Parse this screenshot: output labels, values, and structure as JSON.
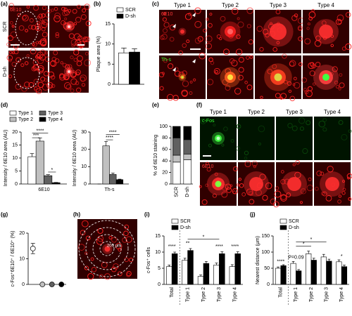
{
  "panel_labels": [
    "(a)",
    "(b)",
    "(c)",
    "(d)",
    "(e)",
    "(f)",
    "(g)",
    "(h)",
    "(i)",
    "(j)"
  ],
  "image_panels": {
    "a": {
      "stain": "6E10",
      "rows": [
        "SCR",
        "D-sh"
      ]
    },
    "c": {
      "columns": [
        "Type 1",
        "Type 2",
        "Type 3",
        "Type 4"
      ],
      "rows": [
        "6E10",
        "Th-s"
      ]
    },
    "f": {
      "columns": [
        "Type 1",
        "Type 2",
        "Type 3",
        "Type 4"
      ],
      "rows": [
        "c-Fos",
        "6E10"
      ]
    },
    "h": {
      "scale_label": "200 μm"
    }
  },
  "chart_data": [
    {
      "type": "bar",
      "ylabel": "Plaque area (%)",
      "categories": [
        null
      ],
      "series": [
        {
          "name": "SCR",
          "color": "#ffffff",
          "values": [
            7.8
          ],
          "errors": [
            1.2
          ]
        },
        {
          "name": "D-sh",
          "color": "#000000",
          "values": [
            8.0
          ],
          "errors": [
            0.8
          ]
        }
      ],
      "ylim": [
        0,
        15
      ],
      "yticks": [
        0,
        5,
        10,
        15
      ],
      "legend": "top"
    },
    {
      "type": "bar",
      "ylabel": "Intensity / 6E10 area (AU)",
      "categories": [
        "6E10"
      ],
      "series": [
        {
          "name": "Type 1",
          "color": "#ffffff",
          "values": [
            10.5
          ],
          "errors": [
            1.2
          ]
        },
        {
          "name": "Type 2",
          "color": "#c0c0c0",
          "values": [
            16.5
          ],
          "errors": [
            1.2
          ]
        },
        {
          "name": "Type 3",
          "color": "#606060",
          "values": [
            3.2
          ],
          "errors": [
            0.4
          ]
        },
        {
          "name": "Type 4",
          "color": "#000000",
          "values": [
            0.5
          ],
          "errors": [
            0.1
          ]
        }
      ],
      "ylim": [
        0,
        20
      ],
      "yticks": [
        0,
        5,
        10,
        15,
        20
      ],
      "legend": "top",
      "annotations": [
        "****",
        "***",
        "*"
      ]
    },
    {
      "type": "bar",
      "ylabel": "Intensity / 6E10 area (AU)",
      "categories": [
        "Th-s"
      ],
      "series": [
        {
          "color": "#ffffff",
          "values": [
            0
          ],
          "errors": [
            0
          ]
        },
        {
          "color": "#c0c0c0",
          "values": [
            22
          ],
          "errors": [
            2.5
          ]
        },
        {
          "color": "#606060",
          "values": [
            5.5
          ],
          "errors": [
            0.8
          ]
        },
        {
          "color": "#000000",
          "values": [
            2.5
          ],
          "errors": [
            0.3
          ]
        }
      ],
      "ylim": [
        0,
        30
      ],
      "yticks": [
        0,
        10,
        20,
        30
      ],
      "annotations": [
        "****",
        "****"
      ]
    },
    {
      "type": "stacked_bar",
      "ylabel": "% of 6E10 staining",
      "categories": [
        "SCR",
        "D-sh"
      ],
      "series": [
        {
          "color": "#ffffff",
          "values": [
            38,
            42
          ]
        },
        {
          "color": "#c0c0c0",
          "values": [
            12,
            10
          ]
        },
        {
          "color": "#606060",
          "values": [
            30,
            25
          ]
        },
        {
          "color": "#000000",
          "values": [
            20,
            23
          ]
        }
      ],
      "ylim": [
        0,
        100
      ],
      "yticks": [
        0,
        20,
        40,
        60,
        80,
        100
      ]
    },
    {
      "type": "dot",
      "ylabel": "c-Fos⁺6E10⁺ / 6E10⁺ (%)",
      "values": [
        14,
        0,
        0,
        0
      ],
      "errors": [
        2,
        0,
        0,
        0
      ],
      "colors": [
        "#ffffff",
        "#c0c0c0",
        "#606060",
        "#000000"
      ],
      "ylim": [
        0,
        20
      ],
      "yticks": [
        0,
        10,
        20
      ]
    },
    {
      "type": "bar",
      "ylabel": "c-Fos⁺ cells",
      "categories": [
        "Total",
        "Type 1",
        "Type 2",
        "Type 3",
        "Type 4"
      ],
      "series": [
        {
          "name": "SCR",
          "color": "#ffffff",
          "values": [
            5.5,
            7.5,
            2.5,
            6,
            5.5
          ],
          "errors": [
            0.5,
            0.6,
            0.4,
            0.6,
            0.6
          ]
        },
        {
          "name": "D-sh",
          "color": "#000000",
          "values": [
            9.5,
            10.5,
            6.5,
            9.5,
            9.5
          ],
          "errors": [
            0.5,
            0.6,
            0.6,
            0.6,
            0.6
          ]
        }
      ],
      "ylim": [
        0,
        15
      ],
      "yticks": [
        0,
        5,
        10,
        15
      ],
      "legend": "top",
      "annotations": [
        "****",
        "**",
        "*",
        "****",
        "****"
      ]
    },
    {
      "type": "bar",
      "ylabel": "Nearest distance (μm)",
      "categories": [
        "Total",
        "Type 1",
        "Type 2",
        "Type 3",
        "Type 4"
      ],
      "series": [
        {
          "name": "SCR",
          "color": "#ffffff",
          "values": [
            50,
            65,
            95,
            85,
            70
          ],
          "errors": [
            4,
            6,
            8,
            8,
            6
          ]
        },
        {
          "name": "D-sh",
          "color": "#000000",
          "values": [
            58,
            42,
            75,
            72,
            55
          ],
          "errors": [
            3,
            4,
            6,
            6,
            5
          ]
        }
      ],
      "ylim": [
        0,
        150
      ],
      "yticks": [
        0,
        50,
        100,
        150
      ],
      "legend": "top",
      "annotations": [
        "****",
        "P=0.09",
        "*",
        "*",
        "*"
      ]
    }
  ]
}
